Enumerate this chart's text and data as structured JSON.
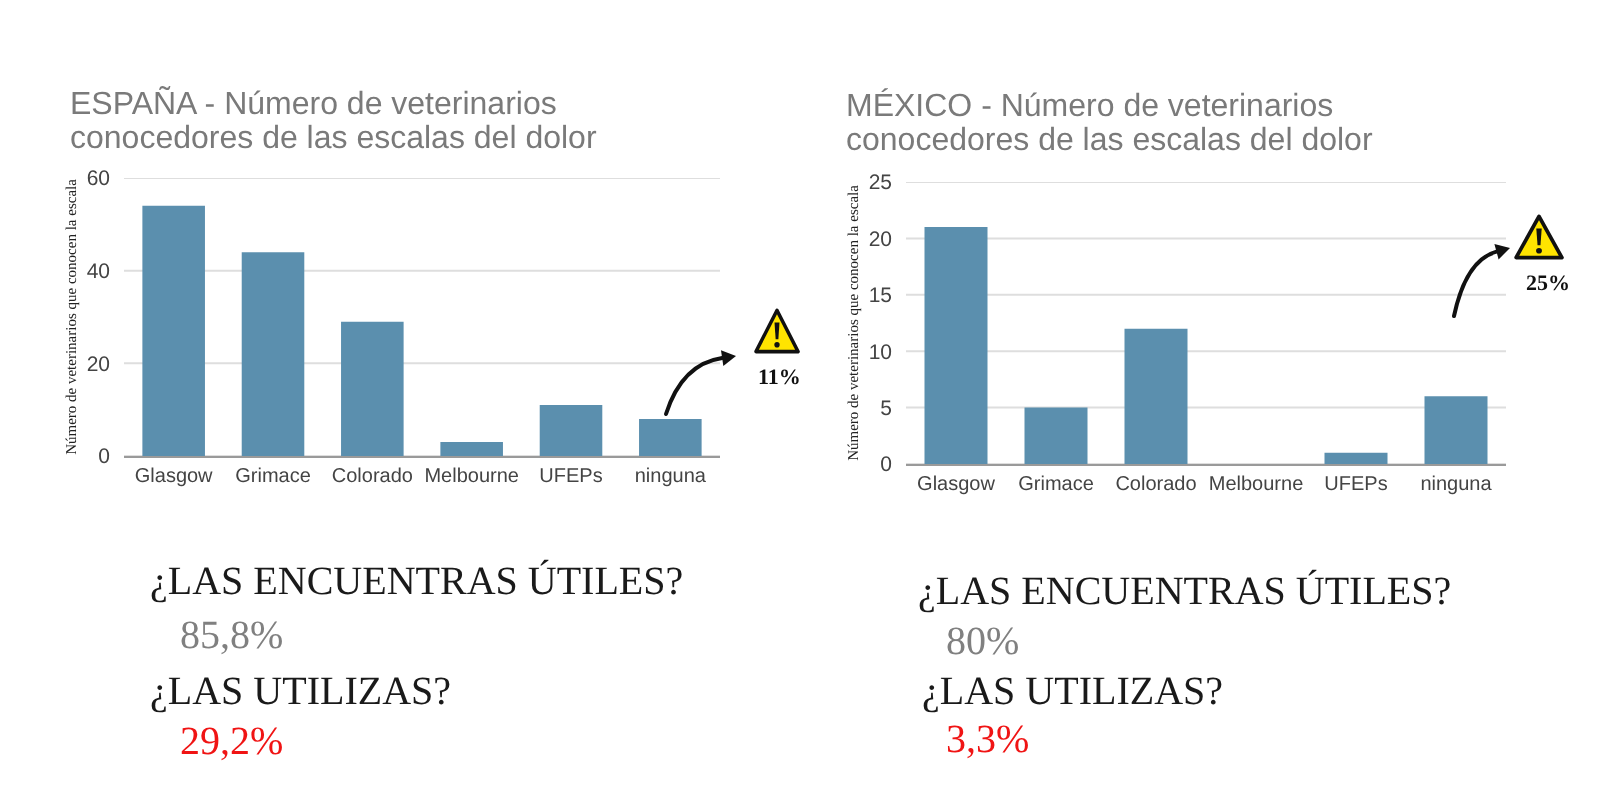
{
  "chart_data": [
    {
      "type": "bar",
      "title": "ESPAÑA - Número de veterinarios conocedores de las escalas del dolor",
      "ylabel": "Número de veterinarios que conocen la escala",
      "categories": [
        "Glasgow",
        "Grimace",
        "Colorado",
        "Melbourne",
        "UFEPs",
        "ninguna"
      ],
      "values": [
        54,
        44,
        29,
        3,
        11,
        8
      ],
      "color": "#5b8fae",
      "ylim": [
        0,
        60
      ],
      "yticks": [
        0,
        20,
        40,
        60
      ],
      "grid": "y",
      "annotations": [
        "11%",
        "¿LAS ENCUENTRAS ÚTILES?",
        "85,8%",
        "¿LAS UTILIZAS?",
        "29,2%"
      ]
    },
    {
      "type": "bar",
      "title": "MÉXICO - Número de veterinarios conocedores de las escalas del dolor",
      "ylabel": "Número de veterinarios que conocen la escala",
      "categories": [
        "Glasgow",
        "Grimace",
        "Colorado",
        "Melbourne",
        "UFEPs",
        "ninguna"
      ],
      "values": [
        21,
        5,
        12,
        0,
        1,
        6
      ],
      "color": "#5b8fae",
      "ylim": [
        0,
        25
      ],
      "yticks": [
        0,
        5,
        10,
        15,
        20,
        25
      ],
      "grid": "y",
      "annotations": [
        "25%",
        "¿LAS ENCUENTRAS ÚTILES?",
        "80%",
        "¿LAS UTILIZAS?",
        "3,3%"
      ]
    }
  ]
}
